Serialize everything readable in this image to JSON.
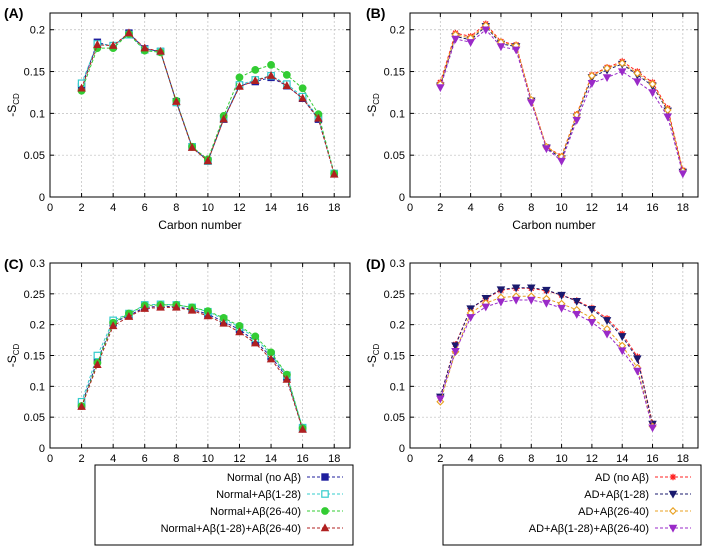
{
  "chart_data": [
    {
      "type": "line",
      "panel": "(A)",
      "xlabel": "Carbon number",
      "ylabel": "-S",
      "ylabel_sub": "CD",
      "xlim": [
        0,
        19
      ],
      "ylim": [
        0,
        0.22
      ],
      "xticks": [
        0,
        2,
        4,
        6,
        8,
        10,
        12,
        14,
        16,
        18
      ],
      "yticks": [
        0,
        0.05,
        0.1,
        0.15,
        0.2
      ],
      "ytick_labels": [
        "0",
        "0.05",
        "0.1",
        "0.15",
        "0.2"
      ],
      "grid": true,
      "x": [
        2,
        3,
        4,
        5,
        6,
        7,
        8,
        9,
        10,
        11,
        12,
        13,
        14,
        15,
        16,
        17,
        18
      ],
      "series": [
        {
          "name": "Normal (no Aβ)",
          "color": "#1f1f9e",
          "marker": "square-filled",
          "values": [
            0.132,
            0.185,
            0.18,
            0.196,
            0.177,
            0.174,
            0.114,
            0.06,
            0.043,
            0.093,
            0.133,
            0.138,
            0.143,
            0.133,
            0.118,
            0.093,
            0.028
          ]
        },
        {
          "name": "Normal+Aβ(1-28)",
          "color": "#33cccc",
          "marker": "square-open",
          "values": [
            0.136,
            0.183,
            0.181,
            0.194,
            0.176,
            0.174,
            0.113,
            0.06,
            0.043,
            0.094,
            0.134,
            0.14,
            0.145,
            0.135,
            0.12,
            0.095,
            0.028
          ]
        },
        {
          "name": "Normal+Aβ(26-40)",
          "color": "#33cc33",
          "marker": "circle-filled",
          "values": [
            0.127,
            0.178,
            0.178,
            0.195,
            0.175,
            0.173,
            0.115,
            0.06,
            0.045,
            0.097,
            0.143,
            0.152,
            0.158,
            0.146,
            0.13,
            0.099,
            0.028
          ]
        },
        {
          "name": "Normal+Aβ(1-28)+Aβ(26-40)",
          "color": "#b02020",
          "marker": "triangle-up-filled",
          "values": [
            0.13,
            0.182,
            0.181,
            0.196,
            0.178,
            0.174,
            0.114,
            0.059,
            0.043,
            0.093,
            0.132,
            0.139,
            0.145,
            0.133,
            0.118,
            0.094,
            0.027
          ]
        }
      ]
    },
    {
      "type": "line",
      "panel": "(B)",
      "xlabel": "Carbon number",
      "ylabel": "-S",
      "ylabel_sub": "CD",
      "xlim": [
        0,
        19
      ],
      "ylim": [
        0,
        0.22
      ],
      "xticks": [
        0,
        2,
        4,
        6,
        8,
        10,
        12,
        14,
        16,
        18
      ],
      "yticks": [
        0,
        0.05,
        0.1,
        0.15,
        0.2
      ],
      "ytick_labels": [
        "0",
        "0.05",
        "0.1",
        "0.15",
        "0.2"
      ],
      "grid": true,
      "x": [
        2,
        3,
        4,
        5,
        6,
        7,
        8,
        9,
        10,
        11,
        12,
        13,
        14,
        15,
        16,
        17,
        18
      ],
      "series": [
        {
          "name": "AD (no Aβ)",
          "color": "#ff2020",
          "marker": "star",
          "values": [
            0.137,
            0.196,
            0.192,
            0.207,
            0.186,
            0.182,
            0.116,
            0.06,
            0.049,
            0.099,
            0.146,
            0.155,
            0.162,
            0.15,
            0.137,
            0.106,
            0.032
          ]
        },
        {
          "name": "AD+Aβ(1-28)",
          "color": "#1a1a6e",
          "marker": "triangle-down-filled",
          "values": [
            0.133,
            0.192,
            0.188,
            0.204,
            0.183,
            0.18,
            0.115,
            0.059,
            0.046,
            0.096,
            0.143,
            0.152,
            0.159,
            0.146,
            0.133,
            0.103,
            0.03
          ]
        },
        {
          "name": "AD+Aβ(26-40)",
          "color": "#e8a020",
          "marker": "diamond-open",
          "values": [
            0.135,
            0.194,
            0.19,
            0.205,
            0.185,
            0.181,
            0.116,
            0.06,
            0.048,
            0.098,
            0.145,
            0.154,
            0.16,
            0.148,
            0.135,
            0.104,
            0.031
          ]
        },
        {
          "name": "AD+Aβ(1-28)+Aβ(26-40)",
          "color": "#9a2ac8",
          "marker": "triangle-down-filled",
          "values": [
            0.131,
            0.189,
            0.185,
            0.2,
            0.18,
            0.176,
            0.113,
            0.058,
            0.043,
            0.092,
            0.136,
            0.143,
            0.15,
            0.138,
            0.125,
            0.096,
            0.028
          ]
        }
      ]
    },
    {
      "type": "line",
      "panel": "(C)",
      "xlabel": "Carbon number",
      "ylabel": "-S",
      "ylabel_sub": "CD",
      "xlim": [
        0,
        19
      ],
      "ylim": [
        0,
        0.3
      ],
      "xticks": [
        0,
        2,
        4,
        6,
        8,
        10,
        12,
        14,
        16,
        18
      ],
      "yticks": [
        0,
        0.05,
        0.1,
        0.15,
        0.2,
        0.25,
        0.3
      ],
      "ytick_labels": [
        "0",
        "0.05",
        "0.1",
        "0.15",
        "0.2",
        "0.25",
        "0.3"
      ],
      "grid": true,
      "x": [
        2,
        3,
        4,
        5,
        6,
        7,
        8,
        9,
        10,
        11,
        12,
        13,
        14,
        15,
        16
      ],
      "series": [
        {
          "name": "Normal (no Aβ)",
          "color": "#1f1f9e",
          "marker": "square-filled",
          "values": [
            0.07,
            0.142,
            0.203,
            0.215,
            0.228,
            0.23,
            0.229,
            0.225,
            0.217,
            0.205,
            0.192,
            0.173,
            0.148,
            0.115,
            0.031
          ]
        },
        {
          "name": "Normal+Aβ(1-28)",
          "color": "#33cccc",
          "marker": "square-open",
          "values": [
            0.075,
            0.15,
            0.207,
            0.218,
            0.232,
            0.233,
            0.232,
            0.228,
            0.221,
            0.209,
            0.196,
            0.178,
            0.152,
            0.118,
            0.033
          ]
        },
        {
          "name": "Normal+Aβ(26-40)",
          "color": "#33cc33",
          "marker": "circle-filled",
          "values": [
            0.068,
            0.138,
            0.203,
            0.218,
            0.231,
            0.232,
            0.232,
            0.228,
            0.222,
            0.211,
            0.198,
            0.181,
            0.155,
            0.119,
            0.032
          ]
        },
        {
          "name": "Normal+Aβ(1-28)+Aβ(26-40)",
          "color": "#b02020",
          "marker": "triangle-up-filled",
          "values": [
            0.067,
            0.135,
            0.198,
            0.213,
            0.226,
            0.228,
            0.228,
            0.223,
            0.214,
            0.202,
            0.188,
            0.17,
            0.144,
            0.111,
            0.03
          ]
        }
      ]
    },
    {
      "type": "line",
      "panel": "(D)",
      "xlabel": "Carbon number",
      "ylabel": "-S",
      "ylabel_sub": "CD",
      "xlim": [
        0,
        19
      ],
      "ylim": [
        0,
        0.3
      ],
      "xticks": [
        0,
        2,
        4,
        6,
        8,
        10,
        12,
        14,
        16,
        18
      ],
      "yticks": [
        0,
        0.05,
        0.1,
        0.15,
        0.2,
        0.25,
        0.3
      ],
      "ytick_labels": [
        "0",
        "0.05",
        "0.1",
        "0.15",
        "0.2",
        "0.25",
        "0.3"
      ],
      "grid": true,
      "x": [
        2,
        3,
        4,
        5,
        6,
        7,
        8,
        9,
        10,
        11,
        12,
        13,
        14,
        15,
        16
      ],
      "series": [
        {
          "name": "AD (no Aβ)",
          "color": "#ff2020",
          "marker": "star",
          "values": [
            0.083,
            0.168,
            0.226,
            0.242,
            0.256,
            0.259,
            0.259,
            0.255,
            0.248,
            0.239,
            0.227,
            0.21,
            0.185,
            0.148,
            0.04
          ]
        },
        {
          "name": "AD+Aβ(1-28)",
          "color": "#1a1a6e",
          "marker": "triangle-down-filled",
          "values": [
            0.083,
            0.166,
            0.226,
            0.243,
            0.257,
            0.26,
            0.26,
            0.256,
            0.248,
            0.238,
            0.225,
            0.207,
            0.181,
            0.145,
            0.039
          ]
        },
        {
          "name": "AD+Aβ(26-40)",
          "color": "#e8a020",
          "marker": "diamond-open",
          "values": [
            0.075,
            0.156,
            0.219,
            0.235,
            0.244,
            0.246,
            0.246,
            0.242,
            0.234,
            0.224,
            0.211,
            0.193,
            0.166,
            0.13,
            0.035
          ]
        },
        {
          "name": "AD+Aβ(1-28)+Aβ(26-40)",
          "color": "#9a2ac8",
          "marker": "triangle-down-filled",
          "values": [
            0.08,
            0.157,
            0.212,
            0.229,
            0.237,
            0.24,
            0.24,
            0.235,
            0.227,
            0.217,
            0.204,
            0.185,
            0.158,
            0.125,
            0.033
          ]
        }
      ]
    }
  ],
  "legends": [
    {
      "name": "normal",
      "entries": [
        "Normal (no Aβ)",
        "Normal+Aβ(1-28)",
        "Normal+Aβ(26-40)",
        "Normal+Aβ(1-28)+Aβ(26-40)"
      ]
    },
    {
      "name": "ad",
      "entries": [
        "AD (no Aβ)",
        "AD+Aβ(1-28)",
        "AD+Aβ(26-40)",
        "AD+Aβ(1-28)+Aβ(26-40)"
      ]
    }
  ]
}
